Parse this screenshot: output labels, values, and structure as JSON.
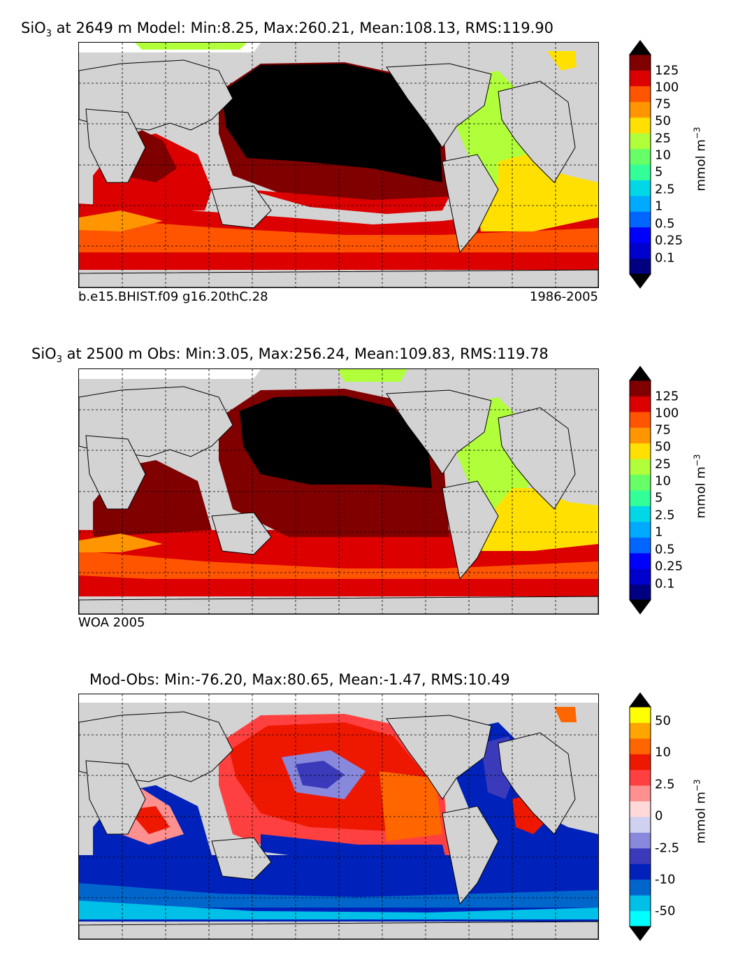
{
  "panels": [
    {
      "title_pre": "SiO",
      "title_sub": "3",
      "title_post": " at 2649 m Model: Min:8.25, Max:260.21, Mean:108.13, RMS:119.90",
      "left_note": "b.e15.BHIST.f09 g16.20thC.28",
      "right_note": "1986-2005",
      "cbar_label": "mmol m",
      "cbar_label_exp": "−3",
      "cbar_ticks": [
        "125",
        "100",
        "75",
        "50",
        "25",
        "10",
        "5",
        "2.5",
        "1",
        "0.5",
        "0.25",
        "0.1"
      ]
    },
    {
      "title_pre": "SiO",
      "title_sub": "3",
      "title_post": " at 2500 m Obs: Min:3.05, Max:256.24, Mean:109.83, RMS:119.78",
      "left_note": "WOA 2005",
      "right_note": "",
      "cbar_label": "mmol m",
      "cbar_label_exp": "−3",
      "cbar_ticks": [
        "125",
        "100",
        "75",
        "50",
        "25",
        "10",
        "5",
        "2.5",
        "1",
        "0.5",
        "0.25",
        "0.1"
      ]
    },
    {
      "title_pre": "Mod-Obs: Min:-76.20, Max:80.65, Mean:-1.47, RMS:10.49",
      "title_sub": "",
      "title_post": "",
      "left_note": "",
      "right_note": "",
      "cbar_label": "mmol m",
      "cbar_label_exp": "−3",
      "cbar_ticks": [
        "50",
        "10",
        "2.5",
        "0",
        "-2.5",
        "-10",
        "-50"
      ]
    }
  ],
  "colors": {
    "conc_scale": [
      "#000080",
      "#0000cd",
      "#0000ff",
      "#0066ff",
      "#00aaff",
      "#00d8e8",
      "#33ff99",
      "#66ff66",
      "#b0ff3a",
      "#ffe000",
      "#ff9500",
      "#ff5500",
      "#dd0000",
      "#800000"
    ],
    "diff_scale": [
      "#00ffff",
      "#00c0e8",
      "#0066cc",
      "#0022bb",
      "#3a3aba",
      "#8888dd",
      "#d0d0f0",
      "#ffd8d8",
      "#ff9090",
      "#ff4040",
      "#ee1800",
      "#ff6600",
      "#ffa500",
      "#ffff00"
    ],
    "land": "#d3d3d3",
    "ice_missing": "#ffffff",
    "peak_black": "#000000"
  }
}
